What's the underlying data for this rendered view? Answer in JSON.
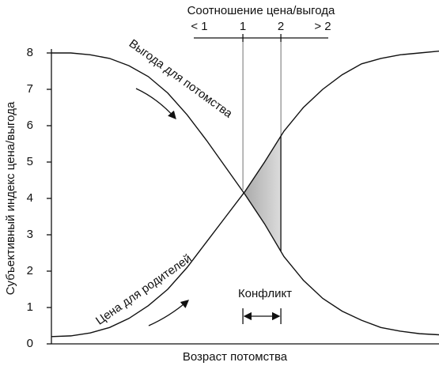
{
  "chart_data": {
    "type": "line",
    "x_label": "Возраст потомства",
    "y_label": "Субъективный индекс цена/выгода",
    "x": [
      0,
      0.5,
      1,
      1.5,
      2,
      2.5,
      3,
      3.5,
      4,
      4.5,
      5,
      5.5,
      6,
      6.5,
      7,
      7.5,
      8,
      8.5,
      9,
      9.5,
      10
    ],
    "xlim": [
      0,
      10
    ],
    "ylim": [
      0,
      8
    ],
    "yticks": [
      0,
      1,
      2,
      3,
      4,
      5,
      6,
      7,
      8
    ],
    "series": [
      {
        "name": "Выгода для потомства",
        "color": "#111111",
        "values": [
          8.0,
          8.0,
          7.95,
          7.85,
          7.65,
          7.35,
          6.9,
          6.3,
          5.6,
          4.85,
          4.1,
          3.3,
          2.4,
          1.75,
          1.25,
          0.9,
          0.65,
          0.45,
          0.35,
          0.28,
          0.25
        ]
      },
      {
        "name": "Цена для родителей",
        "color": "#111111",
        "values": [
          0.2,
          0.22,
          0.3,
          0.45,
          0.7,
          1.05,
          1.5,
          2.1,
          2.8,
          3.5,
          4.2,
          5.0,
          5.85,
          6.5,
          7.0,
          7.4,
          7.7,
          7.85,
          7.95,
          8.0,
          8.05
        ]
      }
    ],
    "top_axis": {
      "title": "Соотношение цена/выгода",
      "ticks": [
        {
          "value": 4.94,
          "label": "1"
        },
        {
          "value": 5.92,
          "label": "2"
        }
      ],
      "side_labels": [
        "< 1",
        "> 2"
      ]
    },
    "conflict": {
      "label": "Конфликт",
      "span": [
        4.94,
        5.92
      ],
      "color": "#9a9a9a"
    }
  }
}
